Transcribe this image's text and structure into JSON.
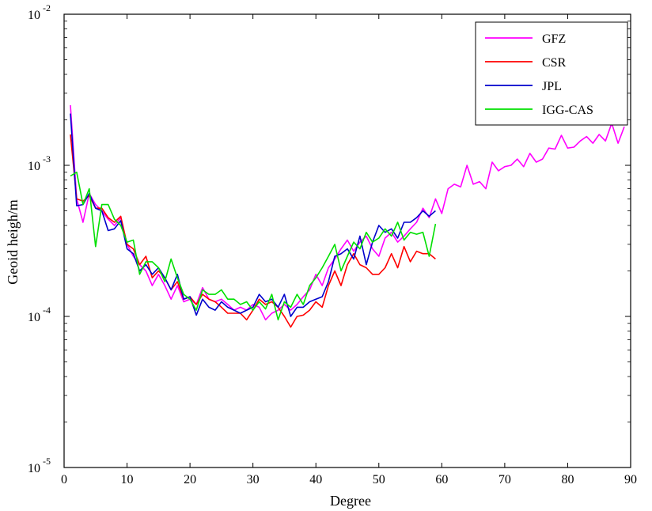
{
  "chart_data": {
    "type": "line",
    "title": "",
    "xlabel": "Degree",
    "ylabel": "Geoid heigh/m",
    "xlim": [
      0,
      90
    ],
    "ylim": [
      1e-05,
      0.01
    ],
    "y_scale": "log",
    "x_ticks": [
      "0",
      "10",
      "20",
      "30",
      "40",
      "50",
      "60",
      "70",
      "80",
      "90"
    ],
    "y_ticks": [
      {
        "base": "10",
        "exp": "-5"
      },
      {
        "base": "10",
        "exp": "-4"
      },
      {
        "base": "10",
        "exp": "-3"
      },
      {
        "base": "10",
        "exp": "-2"
      }
    ],
    "grid": false,
    "legend_position": "top-right",
    "series": [
      {
        "name": "GFZ",
        "color": "#ff00ff",
        "x": [
          1,
          2,
          3,
          4,
          5,
          6,
          7,
          8,
          9,
          10,
          11,
          12,
          13,
          14,
          15,
          16,
          17,
          18,
          19,
          20,
          21,
          22,
          23,
          24,
          25,
          26,
          27,
          28,
          29,
          30,
          31,
          32,
          33,
          34,
          35,
          36,
          37,
          38,
          39,
          40,
          41,
          42,
          43,
          44,
          45,
          46,
          47,
          48,
          49,
          50,
          51,
          52,
          53,
          54,
          55,
          56,
          57,
          58,
          59,
          60,
          61,
          62,
          63,
          64,
          65,
          66,
          67,
          68,
          69,
          70,
          71,
          72,
          73,
          74,
          75,
          76,
          77,
          78,
          79,
          80,
          81,
          82,
          83,
          84,
          85,
          86,
          87,
          88,
          89
        ],
        "y": [
          0.0025,
          0.0006,
          0.00042,
          0.00065,
          0.00055,
          0.0005,
          0.00044,
          0.0004,
          0.00045,
          0.0003,
          0.00025,
          0.00022,
          0.0002,
          0.00016,
          0.00019,
          0.00016,
          0.00013,
          0.00016,
          0.000125,
          0.00013,
          0.00012,
          0.000155,
          0.00013,
          0.000125,
          0.00013,
          0.00012,
          0.00011,
          0.000115,
          0.00011,
          0.00012,
          0.000115,
          9.5e-05,
          0.000105,
          0.00011,
          0.00012,
          0.00011,
          0.00012,
          0.000135,
          0.00015,
          0.00019,
          0.00016,
          0.00021,
          0.00024,
          0.00028,
          0.00032,
          0.00027,
          0.00031,
          0.00034,
          0.00028,
          0.00025,
          0.00033,
          0.00036,
          0.00031,
          0.00034,
          0.00038,
          0.00042,
          0.00052,
          0.00045,
          0.0006,
          0.00048,
          0.0007,
          0.00075,
          0.00072,
          0.001,
          0.00075,
          0.00078,
          0.0007,
          0.00105,
          0.00092,
          0.00098,
          0.001,
          0.0011,
          0.00098,
          0.0012,
          0.00105,
          0.0011,
          0.0013,
          0.00128,
          0.00158,
          0.0013,
          0.00132,
          0.00145,
          0.00155,
          0.0014,
          0.0016,
          0.00145,
          0.0019,
          0.0014,
          0.0018
        ]
      },
      {
        "name": "CSR",
        "color": "#ff0000",
        "x": [
          1,
          2,
          3,
          4,
          5,
          6,
          7,
          8,
          9,
          10,
          11,
          12,
          13,
          14,
          15,
          16,
          17,
          18,
          19,
          20,
          21,
          22,
          23,
          24,
          25,
          26,
          27,
          28,
          29,
          30,
          31,
          32,
          33,
          34,
          35,
          36,
          37,
          38,
          39,
          40,
          41,
          42,
          43,
          44,
          45,
          46,
          47,
          48,
          49,
          50,
          51,
          52,
          53,
          54,
          55,
          56,
          57,
          58,
          59
        ],
        "y": [
          0.0016,
          0.0006,
          0.00058,
          0.00063,
          0.00052,
          0.00052,
          0.00045,
          0.00042,
          0.00046,
          0.0003,
          0.00028,
          0.00022,
          0.00025,
          0.00018,
          0.0002,
          0.00018,
          0.00015,
          0.00017,
          0.00013,
          0.000135,
          0.00012,
          0.00014,
          0.00013,
          0.000125,
          0.000115,
          0.000105,
          0.000105,
          0.000105,
          9.5e-05,
          0.00011,
          0.00013,
          0.00012,
          0.000125,
          0.000115,
          0.0001,
          8.5e-05,
          0.0001,
          0.000102,
          0.00011,
          0.000125,
          0.000115,
          0.00016,
          0.0002,
          0.00016,
          0.00022,
          0.00026,
          0.00022,
          0.00021,
          0.00019,
          0.00019,
          0.00021,
          0.00026,
          0.00021,
          0.00029,
          0.00023,
          0.00027,
          0.00026,
          0.00026,
          0.00024
        ]
      },
      {
        "name": "JPL",
        "color": "#0000cc",
        "x": [
          1,
          2,
          3,
          4,
          5,
          6,
          7,
          8,
          9,
          10,
          11,
          12,
          13,
          14,
          15,
          16,
          17,
          18,
          19,
          20,
          21,
          22,
          23,
          24,
          25,
          26,
          27,
          28,
          29,
          30,
          31,
          32,
          33,
          34,
          35,
          36,
          37,
          38,
          39,
          40,
          41,
          42,
          43,
          44,
          45,
          46,
          47,
          48,
          49,
          50,
          51,
          52,
          53,
          54,
          55,
          56,
          57,
          58,
          59
        ],
        "y": [
          0.0022,
          0.00054,
          0.00055,
          0.00065,
          0.00052,
          0.0005,
          0.00037,
          0.00038,
          0.00043,
          0.00028,
          0.00026,
          0.0002,
          0.00022,
          0.00019,
          0.00021,
          0.00018,
          0.00015,
          0.00019,
          0.00013,
          0.000135,
          0.000102,
          0.00013,
          0.000115,
          0.00011,
          0.000125,
          0.000115,
          0.00011,
          0.000105,
          0.00011,
          0.000115,
          0.00014,
          0.000125,
          0.00013,
          0.000115,
          0.00014,
          0.0001,
          0.000115,
          0.000115,
          0.000125,
          0.00013,
          0.000135,
          0.00017,
          0.00025,
          0.00026,
          0.00028,
          0.00024,
          0.00034,
          0.00022,
          0.00031,
          0.0004,
          0.00036,
          0.00038,
          0.00033,
          0.00042,
          0.00042,
          0.00045,
          0.0005,
          0.00046,
          0.0005
        ]
      },
      {
        "name": "IGG-CAS",
        "color": "#00e000",
        "x": [
          1,
          2,
          3,
          4,
          5,
          6,
          7,
          8,
          9,
          10,
          11,
          12,
          13,
          14,
          15,
          16,
          17,
          18,
          19,
          20,
          21,
          22,
          23,
          24,
          25,
          26,
          27,
          28,
          29,
          30,
          31,
          32,
          33,
          34,
          35,
          36,
          37,
          38,
          39,
          40,
          41,
          42,
          43,
          44,
          45,
          46,
          47,
          48,
          49,
          50,
          51,
          52,
          53,
          54,
          55,
          56,
          57,
          58,
          59
        ],
        "y": [
          0.00085,
          0.0009,
          0.00055,
          0.0007,
          0.00029,
          0.00055,
          0.00055,
          0.00044,
          0.0004,
          0.00031,
          0.00032,
          0.00019,
          0.00023,
          0.00023,
          0.00021,
          0.00017,
          0.00024,
          0.00018,
          0.00014,
          0.00013,
          0.00011,
          0.00015,
          0.00014,
          0.00014,
          0.00015,
          0.00013,
          0.00013,
          0.00012,
          0.000125,
          0.00011,
          0.000125,
          0.000112,
          0.00014,
          9.5e-05,
          0.000125,
          0.000115,
          0.00014,
          0.00012,
          0.00016,
          0.00018,
          0.00021,
          0.00025,
          0.0003,
          0.0002,
          0.00025,
          0.00031,
          0.00028,
          0.00036,
          0.00031,
          0.00033,
          0.00038,
          0.00034,
          0.00042,
          0.00032,
          0.00036,
          0.00035,
          0.00036,
          0.00025,
          0.00041
        ]
      }
    ]
  }
}
